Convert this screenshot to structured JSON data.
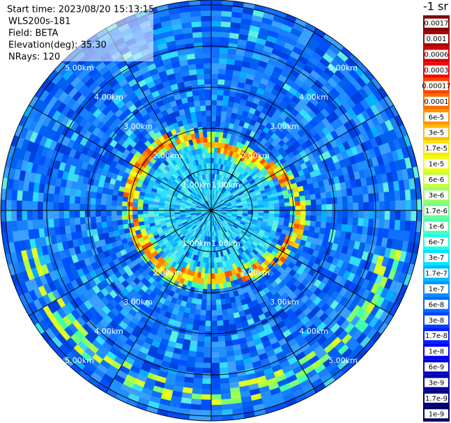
{
  "header": {
    "lines": [
      "Start time: 2023/08/20 15:13:15",
      "WLS200s-181",
      "Field: BETA",
      "Elevation(deg): 35.30",
      "NRays: 120"
    ]
  },
  "colorbar": {
    "title": "-1 sr",
    "levels": [
      {
        "label": "0.0017",
        "color": "#800000"
      },
      {
        "label": "0.001",
        "color": "#a80000"
      },
      {
        "label": "0.0006",
        "color": "#d00000"
      },
      {
        "label": "0.0003",
        "color": "#f80000"
      },
      {
        "label": "0.00017",
        "color": "#ff4000"
      },
      {
        "label": "0.0001",
        "color": "#ff6a00"
      },
      {
        "label": "6e-5",
        "color": "#ff9400"
      },
      {
        "label": "3e-5",
        "color": "#ffbe00"
      },
      {
        "label": "1.7e-5",
        "color": "#ffe800"
      },
      {
        "label": "1e-5",
        "color": "#eeff10"
      },
      {
        "label": "6e-6",
        "color": "#c4ff3a"
      },
      {
        "label": "3e-6",
        "color": "#9aff64"
      },
      {
        "label": "1.7e-6",
        "color": "#70ff8e"
      },
      {
        "label": "1e-6",
        "color": "#46ffb8"
      },
      {
        "label": "6e-7",
        "color": "#1cffe2"
      },
      {
        "label": "3e-7",
        "color": "#00e4ff"
      },
      {
        "label": "1.7e-7",
        "color": "#00bcff"
      },
      {
        "label": "1e-7",
        "color": "#0094ff"
      },
      {
        "label": "6e-8",
        "color": "#006cff"
      },
      {
        "label": "3e-8",
        "color": "#0044ff"
      },
      {
        "label": "1.7e-8",
        "color": "#001cff"
      },
      {
        "label": "1e-8",
        "color": "#0000f4"
      },
      {
        "label": "6e-9",
        "color": "#0000cc"
      },
      {
        "label": "3e-9",
        "color": "#0000a4"
      },
      {
        "label": "1.7e-9",
        "color": "#00007c"
      },
      {
        "label": "1e-9",
        "color": "#000060"
      }
    ]
  },
  "rings": [
    {
      "label": "1.00km"
    },
    {
      "label": "2.00km"
    },
    {
      "label": "3.00km"
    },
    {
      "label": "4.00km"
    },
    {
      "label": "5.00km"
    }
  ]
}
